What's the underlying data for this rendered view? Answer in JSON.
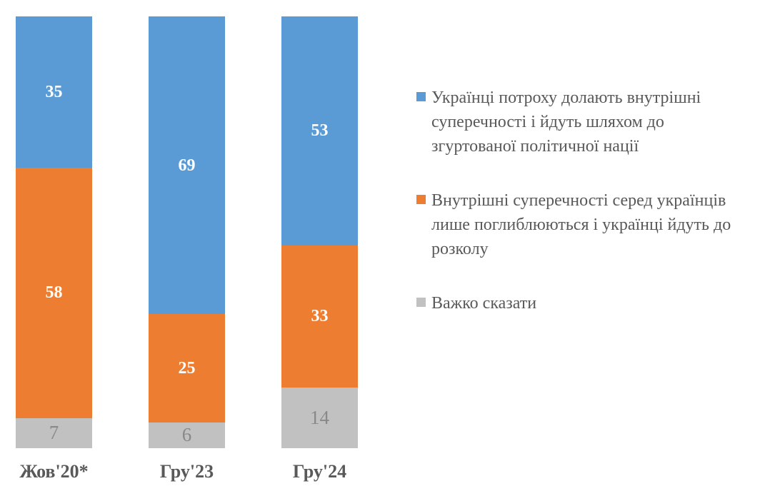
{
  "chart_data": {
    "type": "bar",
    "stacked": true,
    "title": "",
    "xlabel": "",
    "ylabel": "",
    "ylim": [
      0,
      100
    ],
    "grid": false,
    "axes_shown": false,
    "legend_position": "right",
    "value_labels": "inside-center",
    "categories": [
      "Жов'20*",
      "Гру'23",
      "Гру'24"
    ],
    "series": [
      {
        "name": "Українці потроху долають внутрішні суперечності і йдуть шляхом до згуртованої політичної нації",
        "color": "#5B9BD5",
        "label_color": "#FFFFFF",
        "label_bold": true,
        "values": [
          35,
          69,
          53
        ]
      },
      {
        "name": "Внутрішні суперечності серед українців лише поглиблюються і українці йдуть до розколу",
        "color": "#ED7D31",
        "label_color": "#FFFFFF",
        "label_bold": true,
        "values": [
          58,
          25,
          33
        ]
      },
      {
        "name": "Важко сказати",
        "color": "#C1C1C1",
        "label_color": "#898989",
        "label_bold": false,
        "values": [
          7,
          6,
          14
        ]
      }
    ],
    "segment_order_top_to_bottom": [
      0,
      1,
      2
    ],
    "axis_label_color": "#595959",
    "legend_text_color": "#595959"
  }
}
